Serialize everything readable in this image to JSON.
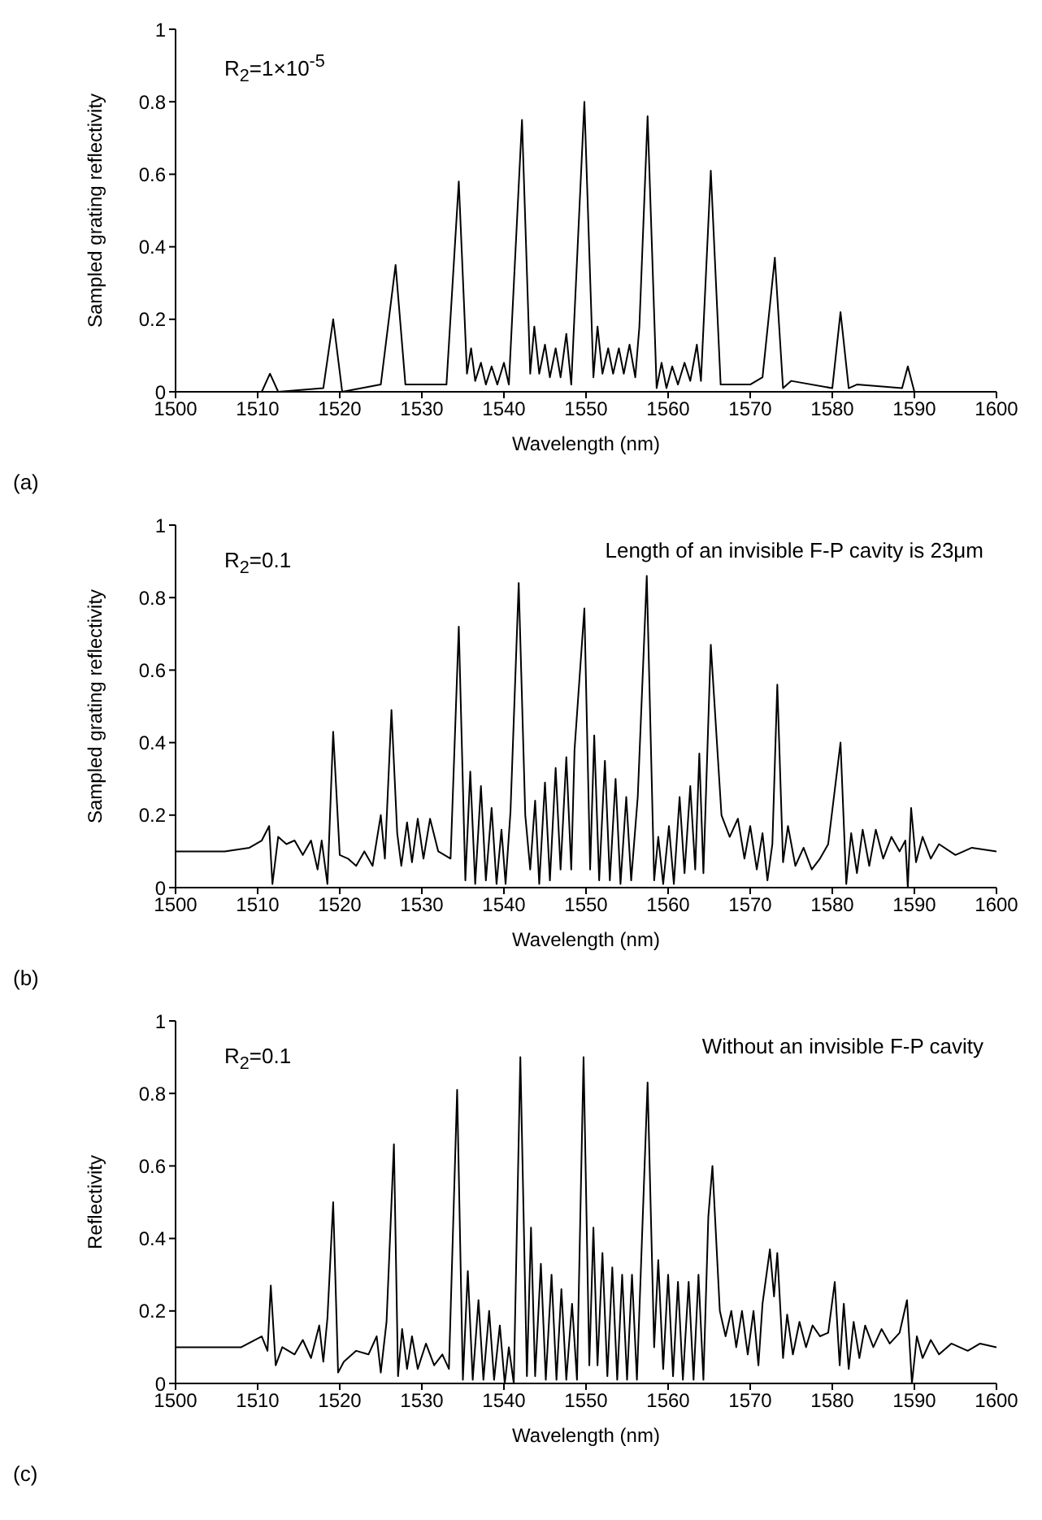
{
  "chart_data": [
    {
      "type": "line",
      "xlabel": "Wavelength (nm)",
      "ylabel": "Sampled grating reflectivity",
      "annotations": [
        "R$_{2}$=1×10$^{-5}$",
        "(a)"
      ],
      "xlim": [
        1500,
        1600
      ],
      "xticks": [
        1500,
        1510,
        1520,
        1530,
        1540,
        1550,
        1560,
        1570,
        1580,
        1590,
        1600
      ],
      "ylim": [
        0,
        1
      ],
      "yticks": [
        0,
        0.2,
        0.4,
        0.6,
        0.8,
        1
      ],
      "grid": false,
      "legend": false,
      "marker": "none",
      "color": "#000000",
      "x": [
        1500,
        1510.5,
        1511.5,
        1512.5,
        1518,
        1519.2,
        1520.3,
        1525,
        1526.8,
        1528,
        1529,
        1533,
        1534.5,
        1535.5,
        1536,
        1536.5,
        1537.2,
        1537.8,
        1538.5,
        1539.2,
        1540,
        1540.6,
        1542.2,
        1543.2,
        1543.7,
        1544.3,
        1545,
        1545.6,
        1546.3,
        1546.9,
        1547.6,
        1548.2,
        1549.8,
        1550.9,
        1551.4,
        1552,
        1552.7,
        1553.3,
        1554,
        1554.6,
        1555.3,
        1556,
        1556.5,
        1557.5,
        1558.6,
        1559.2,
        1559.8,
        1560.5,
        1561.2,
        1562,
        1562.7,
        1563.5,
        1564,
        1565.2,
        1566.4,
        1570,
        1571.5,
        1573,
        1574,
        1575,
        1580,
        1581,
        1582,
        1583,
        1588.5,
        1589.2,
        1590,
        1600
      ],
      "values": [
        0,
        0,
        0.05,
        0,
        0.01,
        0.2,
        0,
        0.02,
        0.35,
        0.02,
        0.02,
        0.02,
        0.58,
        0.05,
        0.12,
        0.03,
        0.08,
        0.02,
        0.07,
        0.02,
        0.08,
        0.02,
        0.75,
        0.05,
        0.18,
        0.05,
        0.13,
        0.04,
        0.12,
        0.04,
        0.16,
        0.02,
        0.8,
        0.04,
        0.18,
        0.05,
        0.12,
        0.05,
        0.12,
        0.05,
        0.13,
        0.04,
        0.18,
        0.76,
        0.01,
        0.08,
        0.01,
        0.07,
        0.02,
        0.08,
        0.03,
        0.13,
        0.03,
        0.61,
        0.02,
        0.02,
        0.04,
        0.37,
        0.01,
        0.03,
        0.01,
        0.22,
        0.01,
        0.02,
        0.01,
        0.07,
        0,
        0
      ]
    },
    {
      "type": "line",
      "xlabel": "Wavelength (nm)",
      "ylabel": "Sampled grating reflectivity",
      "annotations": [
        "R$_{2}$=0.1",
        "Length of an invisible F-P cavity is 23μm",
        "(b)"
      ],
      "xlim": [
        1500,
        1600
      ],
      "xticks": [
        1500,
        1510,
        1520,
        1530,
        1540,
        1550,
        1560,
        1570,
        1580,
        1590,
        1600
      ],
      "ylim": [
        0,
        1
      ],
      "yticks": [
        0,
        0.2,
        0.4,
        0.6,
        0.8,
        1
      ],
      "grid": false,
      "legend": false,
      "marker": "none",
      "color": "#000000",
      "x": [
        1500,
        1503,
        1506,
        1509,
        1510.5,
        1511.4,
        1511.8,
        1512.5,
        1513.5,
        1514.5,
        1515.5,
        1516.5,
        1517.3,
        1517.8,
        1518.5,
        1519.2,
        1520,
        1521,
        1522,
        1523,
        1524,
        1525,
        1525.5,
        1526.3,
        1527,
        1527.5,
        1528.2,
        1528.8,
        1529.5,
        1530.2,
        1531,
        1532,
        1533.5,
        1534.5,
        1535.3,
        1535.9,
        1536.5,
        1537.2,
        1537.8,
        1538.5,
        1539.1,
        1539.7,
        1540.2,
        1540.8,
        1541.8,
        1542.6,
        1543.2,
        1543.8,
        1544.3,
        1545,
        1545.6,
        1546.3,
        1546.9,
        1547.6,
        1548.2,
        1548.6,
        1549.8,
        1550.5,
        1551,
        1551.6,
        1552.3,
        1552.9,
        1553.6,
        1554.2,
        1554.9,
        1555.5,
        1556.3,
        1557.4,
        1558.3,
        1558.8,
        1559.4,
        1560.1,
        1560.7,
        1561.4,
        1562,
        1562.7,
        1563.3,
        1563.8,
        1564.3,
        1565.2,
        1566.5,
        1567.5,
        1568.5,
        1569.3,
        1570,
        1570.8,
        1571.5,
        1572.1,
        1572.7,
        1573.3,
        1574,
        1574.6,
        1575.5,
        1576.5,
        1577.5,
        1578.5,
        1579.5,
        1581,
        1581.7,
        1582.3,
        1583,
        1583.7,
        1584.5,
        1585.3,
        1586.2,
        1587.2,
        1588.2,
        1588.9,
        1589.2,
        1589.6,
        1590.2,
        1591,
        1592,
        1593,
        1595,
        1597,
        1600
      ],
      "values": [
        0.1,
        0.1,
        0.1,
        0.11,
        0.13,
        0.17,
        0.01,
        0.14,
        0.12,
        0.13,
        0.09,
        0.13,
        0.05,
        0.13,
        0.01,
        0.43,
        0.09,
        0.08,
        0.06,
        0.1,
        0.06,
        0.2,
        0.08,
        0.49,
        0.15,
        0.06,
        0.18,
        0.07,
        0.19,
        0.08,
        0.19,
        0.1,
        0.08,
        0.72,
        0.02,
        0.32,
        0.01,
        0.28,
        0.02,
        0.22,
        0.01,
        0.16,
        0.01,
        0.21,
        0.84,
        0.2,
        0.05,
        0.24,
        0.01,
        0.29,
        0.02,
        0.33,
        0.05,
        0.36,
        0.05,
        0.38,
        0.77,
        0.05,
        0.42,
        0.02,
        0.35,
        0.02,
        0.3,
        0.01,
        0.25,
        0.02,
        0.25,
        0.86,
        0.02,
        0.14,
        0.01,
        0.17,
        0.01,
        0.25,
        0.04,
        0.28,
        0.05,
        0.37,
        0.04,
        0.67,
        0.2,
        0.14,
        0.19,
        0.08,
        0.17,
        0.05,
        0.15,
        0.02,
        0.12,
        0.56,
        0.07,
        0.17,
        0.06,
        0.11,
        0.05,
        0.08,
        0.12,
        0.4,
        0.01,
        0.15,
        0.04,
        0.16,
        0.06,
        0.16,
        0.08,
        0.14,
        0.1,
        0.13,
        0,
        0.22,
        0.07,
        0.14,
        0.08,
        0.12,
        0.09,
        0.11,
        0.1
      ]
    },
    {
      "type": "line",
      "xlabel": "Wavelength (nm)",
      "ylabel": "Reflectivity",
      "annotations": [
        "R$_{2}$=0.1",
        "Without an invisible F-P cavity",
        "(c)"
      ],
      "xlim": [
        1500,
        1600
      ],
      "xticks": [
        1500,
        1510,
        1520,
        1530,
        1540,
        1550,
        1560,
        1570,
        1580,
        1590,
        1600
      ],
      "ylim": [
        0,
        1
      ],
      "yticks": [
        0,
        0.2,
        0.4,
        0.6,
        0.8,
        1
      ],
      "grid": false,
      "legend": false,
      "marker": "none",
      "color": "#000000",
      "x": [
        1500,
        1504,
        1508,
        1510.5,
        1511.2,
        1511.6,
        1512.2,
        1513,
        1514.5,
        1515.5,
        1516.5,
        1517.5,
        1518,
        1518.5,
        1519.2,
        1519.8,
        1520.5,
        1522,
        1523.5,
        1524.5,
        1525,
        1525.7,
        1526.6,
        1527.1,
        1527.6,
        1528.2,
        1528.8,
        1529.5,
        1530.5,
        1531.5,
        1532.5,
        1533.3,
        1534.3,
        1535,
        1535.6,
        1536.2,
        1536.9,
        1537.5,
        1538.2,
        1538.8,
        1539.5,
        1540.1,
        1540.6,
        1541.2,
        1542,
        1542.8,
        1543.3,
        1543.8,
        1544.5,
        1545.1,
        1545.8,
        1546.4,
        1547,
        1547.6,
        1548.3,
        1548.9,
        1549.7,
        1550.4,
        1550.9,
        1551.4,
        1552,
        1552.6,
        1553.2,
        1553.8,
        1554.4,
        1555,
        1555.6,
        1556.2,
        1557.5,
        1558.3,
        1558.8,
        1559.4,
        1560,
        1560.6,
        1561.2,
        1561.8,
        1562.5,
        1563.1,
        1563.7,
        1564.3,
        1564.9,
        1565.4,
        1566.3,
        1567,
        1567.7,
        1568.3,
        1569,
        1569.7,
        1570.4,
        1571,
        1571.5,
        1572.4,
        1572.9,
        1573.3,
        1574,
        1574.5,
        1575.2,
        1576,
        1576.8,
        1577.6,
        1578.5,
        1579.5,
        1580.3,
        1580.9,
        1581.4,
        1582,
        1582.6,
        1583.3,
        1584,
        1585,
        1586,
        1587,
        1588.2,
        1589.1,
        1589.7,
        1590.3,
        1591,
        1592,
        1593,
        1594.5,
        1596.5,
        1598,
        1600
      ],
      "values": [
        0.1,
        0.1,
        0.1,
        0.13,
        0.09,
        0.27,
        0.05,
        0.1,
        0.08,
        0.12,
        0.07,
        0.16,
        0.06,
        0.18,
        0.5,
        0.03,
        0.06,
        0.09,
        0.08,
        0.13,
        0.03,
        0.17,
        0.66,
        0.02,
        0.15,
        0.04,
        0.13,
        0.04,
        0.11,
        0.05,
        0.08,
        0.04,
        0.81,
        0.01,
        0.31,
        0.01,
        0.23,
        0.01,
        0.2,
        0.01,
        0.16,
        0,
        0.1,
        0,
        0.9,
        0.02,
        0.43,
        0.02,
        0.33,
        0.01,
        0.3,
        0.01,
        0.26,
        0.01,
        0.22,
        0.01,
        0.9,
        0.05,
        0.43,
        0.05,
        0.36,
        0.02,
        0.32,
        0.01,
        0.3,
        0.01,
        0.3,
        0.01,
        0.83,
        0.1,
        0.34,
        0.04,
        0.3,
        0.02,
        0.28,
        0.01,
        0.28,
        0.01,
        0.3,
        0.01,
        0.46,
        0.6,
        0.2,
        0.13,
        0.2,
        0.1,
        0.2,
        0.08,
        0.2,
        0.05,
        0.22,
        0.37,
        0.24,
        0.36,
        0.07,
        0.19,
        0.08,
        0.17,
        0.1,
        0.16,
        0.13,
        0.14,
        0.28,
        0.05,
        0.22,
        0.04,
        0.17,
        0.07,
        0.16,
        0.1,
        0.15,
        0.11,
        0.14,
        0.23,
        0,
        0.13,
        0.07,
        0.12,
        0.08,
        0.11,
        0.09,
        0.11,
        0.1
      ]
    }
  ]
}
